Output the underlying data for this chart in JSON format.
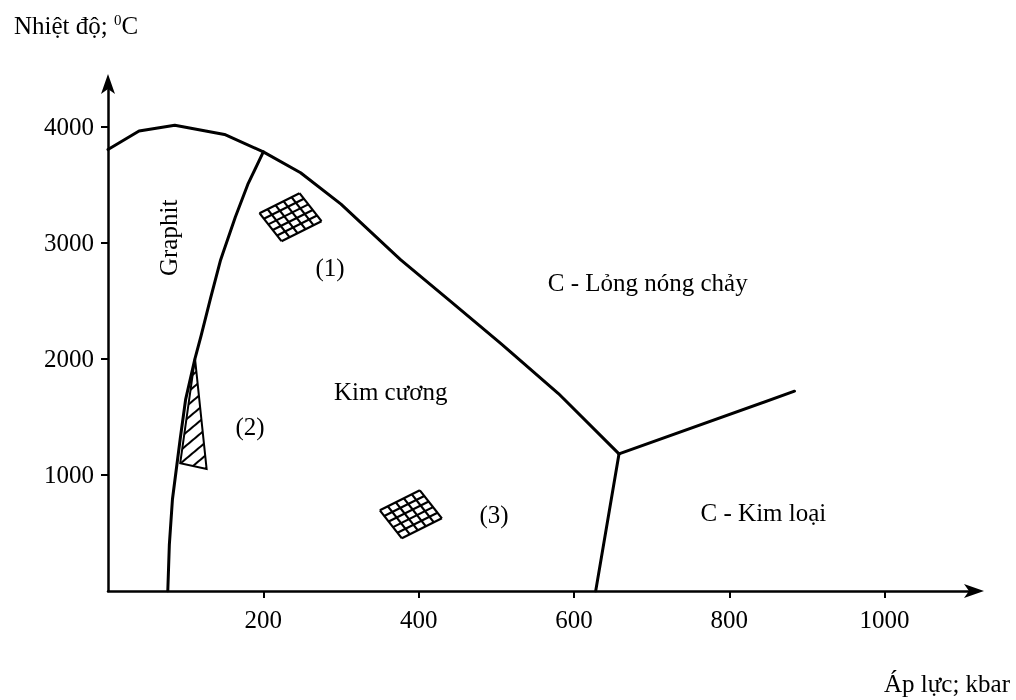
{
  "chart_data": {
    "type": "line",
    "xlabel": "Áp lực; kbar",
    "ylabel": "Nhiệt độ; $^{0}$C",
    "xlim": [
      0,
      1110
    ],
    "xticks": [
      200,
      400,
      600,
      800,
      1000
    ],
    "ylim": [
      0,
      4330
    ],
    "yticks": [
      1000,
      2000,
      3000,
      4000
    ],
    "grid": false,
    "marker": "none",
    "line_style": "solid",
    "series": [
      {
        "color": "#000000",
        "x": [
          0,
          40,
          86,
          150,
          200,
          248,
          300,
          377,
          440,
          506,
          580,
          658
        ],
        "values": [
          3800,
          3960,
          4010,
          3930,
          3780,
          3600,
          3330,
          2850,
          2500,
          2130,
          1700,
          1180
        ]
      },
      {
        "color": "#000000",
        "x": [
          200,
          180,
          164,
          145,
          132,
          120,
          112,
          100,
          93,
          83,
          79,
          77
        ],
        "values": [
          3780,
          3500,
          3220,
          2850,
          2520,
          2200,
          2000,
          1650,
          1310,
          790,
          400,
          0
        ]
      },
      {
        "color": "#000000",
        "x": [
          628,
          658
        ],
        "values": [
          0,
          1180
        ]
      },
      {
        "color": "#000000",
        "x": [
          658,
          884
        ],
        "values": [
          1180,
          1720
        ]
      }
    ],
    "annotations": [
      "Graphit",
      "(1)",
      "(2)",
      "(3)",
      "Kim cương",
      "C - Lỏng nóng chảy",
      "C - Kim loại"
    ]
  }
}
